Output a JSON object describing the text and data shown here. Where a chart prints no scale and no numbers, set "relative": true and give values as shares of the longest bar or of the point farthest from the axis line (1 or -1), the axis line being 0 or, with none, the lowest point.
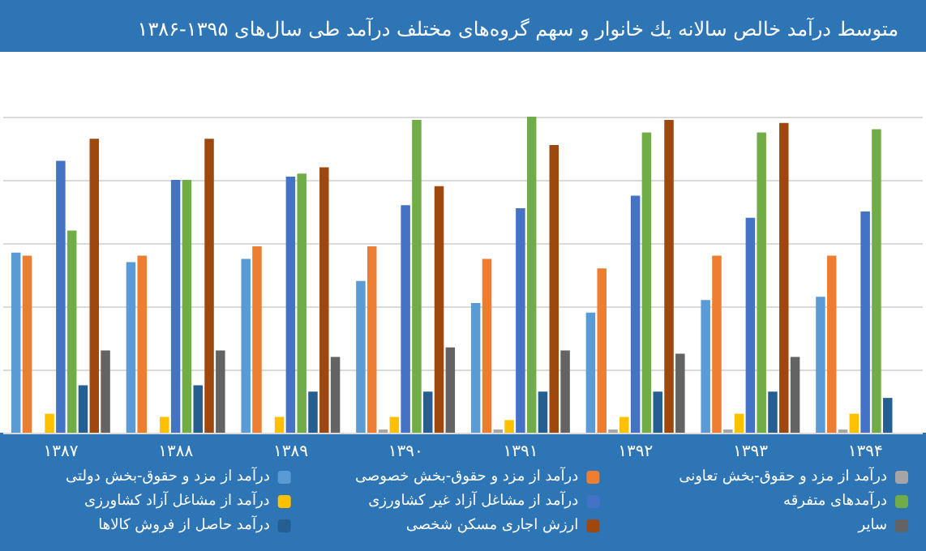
{
  "chart_data": {
    "type": "bar",
    "title": "متوسط درآمد خالص سالانه یك خانوار و سهم گروه‌های مختلف درآمد طی سال‌های ۱۳۹۵-۱۳۸۶",
    "relative": true,
    "grid": "y",
    "legend": "bottom",
    "categories": [
      "۱۳۸۷",
      "۱۳۸۸",
      "۱۳۸۹",
      "۱۳۹۰",
      "۱۳۹۱",
      "۱۳۹۲",
      "۱۳۹۳",
      "۱۳۹۴"
    ],
    "series": [
      {
        "name": "درآمد از مزد و حقوق-بخش دولتی",
        "color": "#5b9bd5",
        "values": [
          0.57,
          0.54,
          0.55,
          0.48,
          0.41,
          0.38,
          0.42,
          0.43
        ]
      },
      {
        "name": "درآمد از مزد و حقوق-بخش خصوصی",
        "color": "#ed7d31",
        "values": [
          0.56,
          0.56,
          0.59,
          0.59,
          0.55,
          0.52,
          0.56,
          0.56
        ]
      },
      {
        "name": "درآمد از مزد و حقوق-بخش تعاونی",
        "color": "#a5a5a5",
        "values": [
          0,
          0,
          0,
          0.01,
          0.01,
          0.01,
          0.01,
          0.01
        ]
      },
      {
        "name": "درآمد از مشاغل آزاد کشاورزی",
        "color": "#ffc000",
        "values": [
          0.06,
          0.05,
          0.05,
          0.05,
          0.04,
          0.05,
          0.06,
          0.06
        ]
      },
      {
        "name": "درآمد از مشاغل آزاد غیر کشاورزی",
        "color": "#4472c4",
        "values": [
          0.86,
          0.8,
          0.81,
          0.72,
          0.71,
          0.75,
          0.68,
          0.7
        ]
      },
      {
        "name": "درآمدهای متفرقه",
        "color": "#70ad47",
        "values": [
          0.64,
          0.8,
          0.82,
          0.99,
          1,
          0.95,
          0.95,
          0.96
        ]
      },
      {
        "name": "درآمد حاصل از فروش کالاها",
        "color": "#255e91",
        "values": [
          0.15,
          0.15,
          0.13,
          0.13,
          0.13,
          0.13,
          0.13,
          0.11
        ]
      },
      {
        "name": "ارزش اجاری مسکن شخصی",
        "color": "#9e480e",
        "values": [
          0.93,
          0.93,
          0.84,
          0.78,
          0.91,
          0.99,
          0.98,
          null
        ]
      },
      {
        "name": "سایر",
        "color": "#636363",
        "values": [
          0.26,
          0.26,
          0.24,
          0.27,
          0.26,
          0.25,
          0.24,
          null
        ]
      }
    ]
  }
}
